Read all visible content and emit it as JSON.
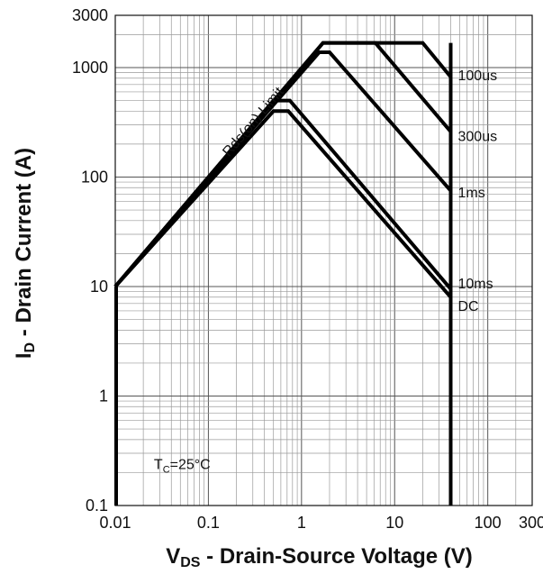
{
  "chart_data": {
    "type": "line",
    "title": "",
    "xlabel": {
      "main": "V",
      "sub": "DS",
      "rest": " - Drain-Source Voltage (V)"
    },
    "ylabel": {
      "main": "I",
      "sub": "D",
      "rest": " - Drain Current (A)"
    },
    "xscale": "log",
    "yscale": "log",
    "xlim": [
      0.01,
      300
    ],
    "ylim": [
      0.1,
      3000
    ],
    "grid": true,
    "x_ticks": [
      {
        "value": 0.01,
        "label": "0.01"
      },
      {
        "value": 0.1,
        "label": "0.1"
      },
      {
        "value": 1,
        "label": "1"
      },
      {
        "value": 10,
        "label": "10"
      },
      {
        "value": 100,
        "label": "100"
      },
      {
        "value": 300,
        "label": "300"
      }
    ],
    "y_ticks": [
      {
        "value": 0.1,
        "label": "0.1"
      },
      {
        "value": 1,
        "label": "1"
      },
      {
        "value": 10,
        "label": "10"
      },
      {
        "value": 100,
        "label": "100"
      },
      {
        "value": 1000,
        "label": "1000"
      },
      {
        "value": 3000,
        "label": "3000"
      }
    ],
    "rds_on_label": "Rds(on) Limit",
    "rds_on_line": {
      "x": [
        0.01,
        1.7
      ],
      "y": [
        10,
        1680
      ]
    },
    "condition": {
      "main": "T",
      "sub": "C",
      "rest": "=25°C"
    },
    "series": [
      {
        "name": "100us",
        "x": [
          0.01,
          1.7,
          20,
          40
        ],
        "y": [
          10,
          1680,
          1680,
          820
        ]
      },
      {
        "name": "300us",
        "x": [
          0.01,
          1.7,
          6.2,
          40
        ],
        "y": [
          10,
          1680,
          1680,
          260
        ]
      },
      {
        "name": "1ms",
        "x": [
          0.01,
          1.55,
          2.0,
          40
        ],
        "y": [
          10,
          1380,
          1380,
          75
        ]
      },
      {
        "name": "10ms",
        "x": [
          0.01,
          0.5,
          0.75,
          40
        ],
        "y": [
          10,
          500,
          500,
          9.5
        ]
      },
      {
        "name": "DC",
        "x": [
          0.01,
          0.5,
          0.72,
          40
        ],
        "y": [
          10,
          400,
          400,
          8
        ]
      }
    ],
    "vertical_limit": {
      "x": 40,
      "y": [
        0.1,
        1680
      ]
    }
  }
}
